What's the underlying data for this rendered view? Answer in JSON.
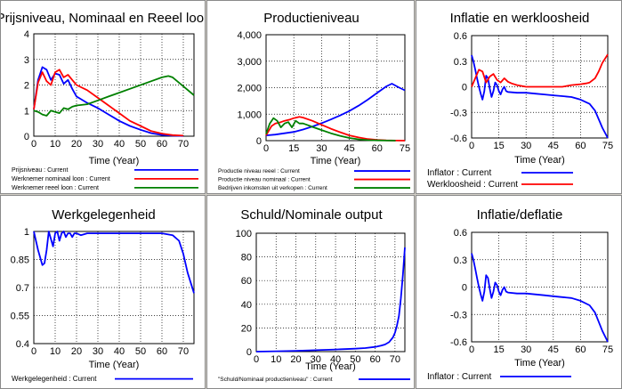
{
  "panels": [
    {
      "id": "prijsniveau",
      "title": "Prijsniveau, Nominaal en Reeel loon",
      "chart_data": {
        "type": "line",
        "title": "Prijsniveau, Nominaal en Reeel loon",
        "xlabel": "Time (Year)",
        "xlim": [
          0,
          75
        ],
        "ylim": [
          0,
          4
        ],
        "xticks": [
          0,
          10,
          20,
          30,
          40,
          50,
          60,
          70
        ],
        "yticks": [
          0,
          1,
          2,
          3,
          4
        ],
        "ytick_labels": [
          "0",
          "1",
          "2",
          "3",
          "4"
        ],
        "series": [
          {
            "name": "Prijsniveau : Current",
            "color": "#0000ff",
            "x": [
              0,
              2,
              4,
              6,
              8,
              10,
              12,
              14,
              16,
              18,
              20,
              25,
              30,
              35,
              40,
              45,
              50,
              55,
              60,
              65,
              70
            ],
            "y": [
              1.05,
              2.2,
              2.7,
              2.6,
              2.2,
              2.45,
              2.4,
              2.05,
              2.2,
              1.85,
              1.55,
              1.3,
              1.1,
              0.85,
              0.6,
              0.4,
              0.25,
              0.12,
              0.05,
              0.02,
              0.01
            ]
          },
          {
            "name": "Werknemer nominaal loon : Current",
            "color": "#ff0000",
            "x": [
              0,
              2,
              4,
              6,
              8,
              10,
              12,
              14,
              16,
              18,
              20,
              25,
              30,
              35,
              40,
              45,
              50,
              55,
              60,
              65,
              70
            ],
            "y": [
              1.05,
              2.1,
              2.5,
              2.15,
              2.0,
              2.5,
              2.6,
              2.3,
              2.4,
              2.2,
              2.0,
              1.8,
              1.5,
              1.2,
              0.9,
              0.6,
              0.4,
              0.2,
              0.1,
              0.04,
              0.02
            ]
          },
          {
            "name": "Werknemer reeel loon : Current",
            "color": "#008000",
            "x": [
              0,
              2,
              4,
              6,
              8,
              10,
              12,
              14,
              16,
              18,
              20,
              25,
              30,
              35,
              40,
              45,
              50,
              55,
              60,
              63,
              65,
              70,
              75
            ],
            "y": [
              1.0,
              0.95,
              0.85,
              0.8,
              1.0,
              0.95,
              0.9,
              1.1,
              1.05,
              1.15,
              1.2,
              1.25,
              1.4,
              1.55,
              1.7,
              1.85,
              2.0,
              2.15,
              2.3,
              2.35,
              2.3,
              1.95,
              1.6
            ]
          }
        ]
      }
    },
    {
      "id": "productieniveau",
      "title": "Productieniveau",
      "chart_data": {
        "type": "line",
        "title": "Productieniveau",
        "xlabel": "Time (Year)",
        "xlim": [
          0,
          75
        ],
        "ylim": [
          0,
          4000
        ],
        "xticks": [
          0,
          15,
          30,
          45,
          60,
          75
        ],
        "yticks": [
          0,
          1000,
          2000,
          3000,
          4000
        ],
        "ytick_labels": [
          "0",
          "1,000",
          "2,000",
          "3,000",
          "4,000"
        ],
        "series": [
          {
            "name": "Productie niveau reeel : Current",
            "color": "#0000ff",
            "x": [
              0,
              5,
              10,
              15,
              20,
              25,
              30,
              35,
              40,
              45,
              50,
              55,
              60,
              65,
              68,
              72,
              75
            ],
            "y": [
              200,
              230,
              280,
              330,
              420,
              530,
              660,
              800,
              950,
              1120,
              1320,
              1550,
              1800,
              2050,
              2150,
              2000,
              1900
            ]
          },
          {
            "name": "Productie niveau nominaal : Current",
            "color": "#ff0000",
            "x": [
              0,
              3,
              5,
              8,
              10,
              13,
              15,
              18,
              20,
              25,
              30,
              35,
              40,
              45,
              50,
              55,
              60,
              65,
              70,
              75
            ],
            "y": [
              200,
              550,
              650,
              700,
              750,
              800,
              850,
              900,
              870,
              750,
              600,
              450,
              320,
              200,
              120,
              60,
              30,
              10,
              5,
              0
            ]
          },
          {
            "name": "Bedrijven inkomsten uit verkopen : Current",
            "color": "#008000",
            "x": [
              0,
              2,
              4,
              6,
              8,
              10,
              12,
              14,
              16,
              18,
              20,
              22,
              25,
              30,
              35,
              40,
              45,
              50,
              55,
              60,
              65,
              70
            ],
            "y": [
              250,
              650,
              850,
              750,
              500,
              650,
              700,
              500,
              750,
              650,
              650,
              600,
              520,
              400,
              280,
              180,
              100,
              50,
              20,
              10,
              5,
              0
            ]
          }
        ]
      }
    },
    {
      "id": "inflatie-werkloosheid",
      "title": "Inflatie en werkloosheid",
      "chart_data": {
        "type": "line",
        "title": "Inflatie en werkloosheid",
        "xlabel": "Time (Year)",
        "xlim": [
          0,
          75
        ],
        "ylim": [
          -0.6,
          0.6
        ],
        "xticks": [
          0,
          15,
          30,
          45,
          60,
          75
        ],
        "yticks": [
          -0.6,
          -0.3,
          0,
          0.3,
          0.6
        ],
        "ytick_labels": [
          "-0.6",
          "-0.3",
          "0",
          "0.3",
          "0.6"
        ],
        "series": [
          {
            "name": "Inflator : Current",
            "color": "#0000ff",
            "x": [
              0,
              1,
              2,
              3,
              4,
              5,
              6,
              7,
              8,
              9,
              10,
              11,
              12,
              13,
              14,
              15,
              16,
              17,
              18,
              19,
              20,
              25,
              30,
              35,
              40,
              45,
              50,
              55,
              60,
              65,
              68,
              70,
              72,
              75
            ],
            "y": [
              0.37,
              0.3,
              0.2,
              0.1,
              0.0,
              -0.08,
              -0.15,
              -0.05,
              0.13,
              0.1,
              -0.02,
              -0.12,
              -0.05,
              0.05,
              0.02,
              -0.05,
              -0.09,
              -0.03,
              0.0,
              -0.05,
              -0.06,
              -0.07,
              -0.07,
              -0.08,
              -0.09,
              -0.1,
              -0.11,
              -0.12,
              -0.15,
              -0.2,
              -0.28,
              -0.38,
              -0.48,
              -0.6
            ]
          },
          {
            "name": "Werkloosheid : Current",
            "color": "#ff0000",
            "x": [
              0,
              2,
              4,
              6,
              8,
              10,
              12,
              14,
              16,
              18,
              20,
              22,
              25,
              30,
              35,
              40,
              45,
              50,
              55,
              60,
              63,
              65,
              68,
              70,
              72,
              75
            ],
            "y": [
              0.0,
              0.1,
              0.2,
              0.18,
              0.05,
              0.12,
              0.15,
              0.08,
              0.05,
              0.1,
              0.06,
              0.04,
              0.02,
              0.0,
              0.0,
              0.0,
              0.0,
              0.0,
              0.02,
              0.03,
              0.04,
              0.05,
              0.1,
              0.18,
              0.28,
              0.38
            ]
          }
        ]
      }
    },
    {
      "id": "werkgelegenheid",
      "title": "Werkgelegenheid",
      "chart_data": {
        "type": "line",
        "title": "Werkgelegenheid",
        "xlabel": "Time (Year)",
        "xlim": [
          0,
          75
        ],
        "ylim": [
          0.4,
          1.0
        ],
        "xticks": [
          0,
          10,
          20,
          30,
          40,
          50,
          60,
          70
        ],
        "yticks": [
          0.4,
          0.55,
          0.7,
          0.85,
          1.0
        ],
        "ytick_labels": [
          "0.4",
          "0.55",
          "0.7",
          "0.85",
          "1"
        ],
        "series": [
          {
            "name": "Werkgelegenheid : Current",
            "color": "#0000ff",
            "x": [
              0,
              2,
              4,
              5,
              6,
              7,
              8,
              9,
              10,
              11,
              12,
              13,
              14,
              15,
              16,
              17,
              18,
              19,
              20,
              22,
              25,
              30,
              40,
              50,
              60,
              65,
              68,
              70,
              72,
              75
            ],
            "y": [
              1.0,
              0.9,
              0.82,
              0.83,
              0.9,
              1.0,
              0.96,
              0.92,
              0.99,
              1.0,
              0.95,
              0.99,
              1.0,
              0.97,
              0.99,
              0.99,
              0.97,
              0.99,
              0.99,
              0.98,
              0.99,
              0.99,
              0.99,
              0.99,
              0.99,
              0.98,
              0.95,
              0.88,
              0.78,
              0.67
            ]
          }
        ]
      }
    },
    {
      "id": "schuld",
      "title": "Schuld/Nominale output",
      "chart_data": {
        "type": "line",
        "title": "Schuld/Nominale output",
        "xlabel": "Time (Year)",
        "xlim": [
          0,
          75
        ],
        "ylim": [
          0,
          100
        ],
        "xticks": [
          0,
          10,
          20,
          30,
          40,
          50,
          60,
          70
        ],
        "yticks": [
          0,
          20,
          40,
          60,
          80,
          100
        ],
        "ytick_labels": [
          "0",
          "20",
          "40",
          "60",
          "80",
          "100"
        ],
        "series": [
          {
            "name": "\"Schuld/Nominaal productieniveau\" : Current",
            "color": "#0000ff",
            "x": [
              0,
              10,
              20,
              30,
              40,
              50,
              55,
              60,
              63,
              65,
              67,
              69,
              70,
              71,
              72,
              73,
              74,
              75
            ],
            "y": [
              0,
              0.3,
              0.7,
              1.2,
              1.8,
              2.5,
              3,
              4,
              5,
              6,
              8,
              12,
              16,
              22,
              30,
              45,
              65,
              88
            ]
          }
        ]
      }
    },
    {
      "id": "inflatie-deflatie",
      "title": "Inflatie/deflatie",
      "chart_data": {
        "type": "line",
        "title": "Inflatie/deflatie",
        "xlabel": "Time (Year)",
        "xlim": [
          0,
          75
        ],
        "ylim": [
          -0.6,
          0.6
        ],
        "xticks": [
          0,
          15,
          30,
          45,
          60,
          75
        ],
        "yticks": [
          -0.6,
          -0.3,
          0,
          0.3,
          0.6
        ],
        "ytick_labels": [
          "-0.6",
          "-0.3",
          "0",
          "0.3",
          "0.6"
        ],
        "series": [
          {
            "name": "Inflator : Current",
            "color": "#0000ff",
            "x": [
              0,
              1,
              2,
              3,
              4,
              5,
              6,
              7,
              8,
              9,
              10,
              11,
              12,
              13,
              14,
              15,
              16,
              17,
              18,
              19,
              20,
              25,
              30,
              35,
              40,
              45,
              50,
              55,
              60,
              65,
              68,
              70,
              72,
              75
            ],
            "y": [
              0.37,
              0.3,
              0.2,
              0.1,
              0.0,
              -0.08,
              -0.15,
              -0.05,
              0.13,
              0.1,
              -0.02,
              -0.12,
              -0.05,
              0.05,
              0.02,
              -0.05,
              -0.09,
              -0.03,
              0.0,
              -0.05,
              -0.06,
              -0.07,
              -0.07,
              -0.08,
              -0.09,
              -0.1,
              -0.11,
              -0.12,
              -0.15,
              -0.2,
              -0.28,
              -0.38,
              -0.48,
              -0.6
            ]
          }
        ]
      }
    }
  ]
}
